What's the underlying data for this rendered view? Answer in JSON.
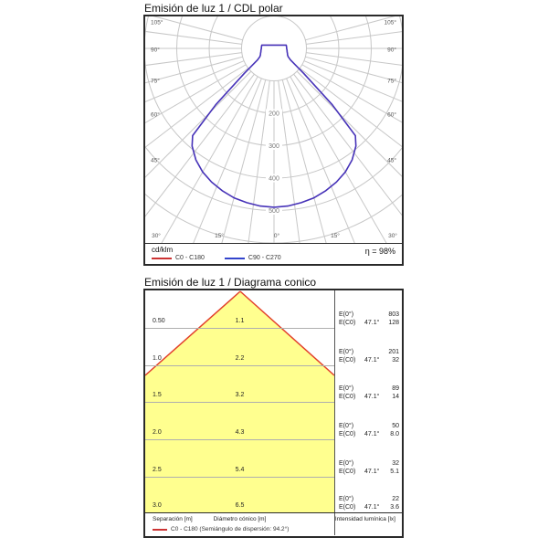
{
  "panel_polar": {
    "title": "Emisión de luz 1 / CDL polar",
    "unit_label": "cd/klm",
    "efficiency": "η = 98%",
    "curve_color": "#4633b9",
    "grid_color": "#c7c7c7",
    "legend": [
      {
        "label": "C0 - C180",
        "color": "#cc3333"
      },
      {
        "label": "C90 - C270",
        "color": "#3344cc"
      }
    ],
    "angle_labels_left": [
      "105°",
      "90°",
      "75°",
      "60°",
      "45°"
    ],
    "angle_labels_right": [
      "105°",
      "90°",
      "75°",
      "60°",
      "45°"
    ],
    "angle_labels_bottom": [
      "30°",
      "15°",
      "0°",
      "15°",
      "30°"
    ],
    "ring_labels": [
      "200",
      "300",
      "400",
      "500"
    ]
  },
  "panel_cone": {
    "title": "Emisión de luz 1 / Diagrama conico",
    "e0_label": "E(0°)",
    "ec0_label": "E(C0)",
    "cone_fill": "#ffff8f",
    "cone_edge": "#e2402c",
    "rows": [
      {
        "separation": "0.50",
        "diameter": "1.1",
        "angle": "47.1°",
        "e0": "803",
        "ec0": "128"
      },
      {
        "separation": "1.0",
        "diameter": "2.2",
        "angle": "47.1°",
        "e0": "201",
        "ec0": "32"
      },
      {
        "separation": "1.5",
        "diameter": "3.2",
        "angle": "47.1°",
        "e0": "89",
        "ec0": "14"
      },
      {
        "separation": "2.0",
        "diameter": "4.3",
        "angle": "47.1°",
        "e0": "50",
        "ec0": "8.0"
      },
      {
        "separation": "2.5",
        "diameter": "5.4",
        "angle": "47.1°",
        "e0": "32",
        "ec0": "5.1"
      },
      {
        "separation": "3.0",
        "diameter": "6.5",
        "angle": "47.1°",
        "e0": "22",
        "ec0": "3.6"
      }
    ],
    "footer": {
      "separation": "Separación [m]",
      "diameter": "Diámetro cónico [m]",
      "intensity": "Intensidad lumínica [lx]",
      "legend": "C0 - C180 (Semiángulo de dispersión: 94.2°)"
    }
  },
  "chart_data": [
    {
      "type": "line",
      "subtype": "polar-luminous-intensity",
      "title": "Emisión de luz 1 / CDL polar",
      "unit": "cd/klm",
      "efficiency_pct": 98,
      "angle_ticks_deg": [
        0,
        15,
        30,
        45,
        60,
        75,
        90,
        105
      ],
      "radial_ticks": [
        100,
        200,
        300,
        400,
        500
      ],
      "legend_position": "bottom-left",
      "series": [
        {
          "name": "C0 - C180",
          "color": "#cc3333",
          "gamma_deg": [
            0,
            5,
            10,
            15,
            20,
            25,
            30,
            35,
            40,
            43,
            46,
            50,
            55,
            60,
            65,
            70,
            75,
            80,
            85,
            90,
            95,
            100,
            105
          ],
          "values": [
            490,
            488,
            483,
            477,
            467,
            455,
            440,
            420,
            393,
            368,
            250,
            120,
            62,
            50,
            46,
            44,
            42,
            41,
            40,
            39,
            39,
            39,
            39
          ]
        },
        {
          "name": "C90 - C270",
          "color": "#3344cc",
          "gamma_deg": [
            0,
            5,
            10,
            15,
            20,
            25,
            30,
            35,
            40,
            43,
            46,
            50,
            55,
            60,
            65,
            70,
            75,
            80,
            85,
            90,
            95,
            100,
            105
          ],
          "values": [
            490,
            488,
            483,
            477,
            467,
            455,
            440,
            420,
            393,
            368,
            250,
            120,
            62,
            50,
            46,
            44,
            42,
            41,
            40,
            39,
            39,
            39,
            39
          ]
        }
      ]
    },
    {
      "type": "table",
      "subtype": "cone-diagram",
      "title": "Emisión de luz 1 / Diagrama conico",
      "beam_angle_deg": 47.1,
      "dispersion_semiangle_deg": 94.2,
      "columns": [
        "Separación [m]",
        "Diámetro cónico [m]",
        "E(0°) [lx]",
        "E(C0) [lx]"
      ],
      "rows": [
        [
          0.5,
          1.1,
          803,
          128
        ],
        [
          1.0,
          2.2,
          201,
          32
        ],
        [
          1.5,
          3.2,
          89,
          14
        ],
        [
          2.0,
          4.3,
          50,
          8.0
        ],
        [
          2.5,
          5.4,
          32,
          5.1
        ],
        [
          3.0,
          6.5,
          22,
          3.6
        ]
      ]
    }
  ]
}
